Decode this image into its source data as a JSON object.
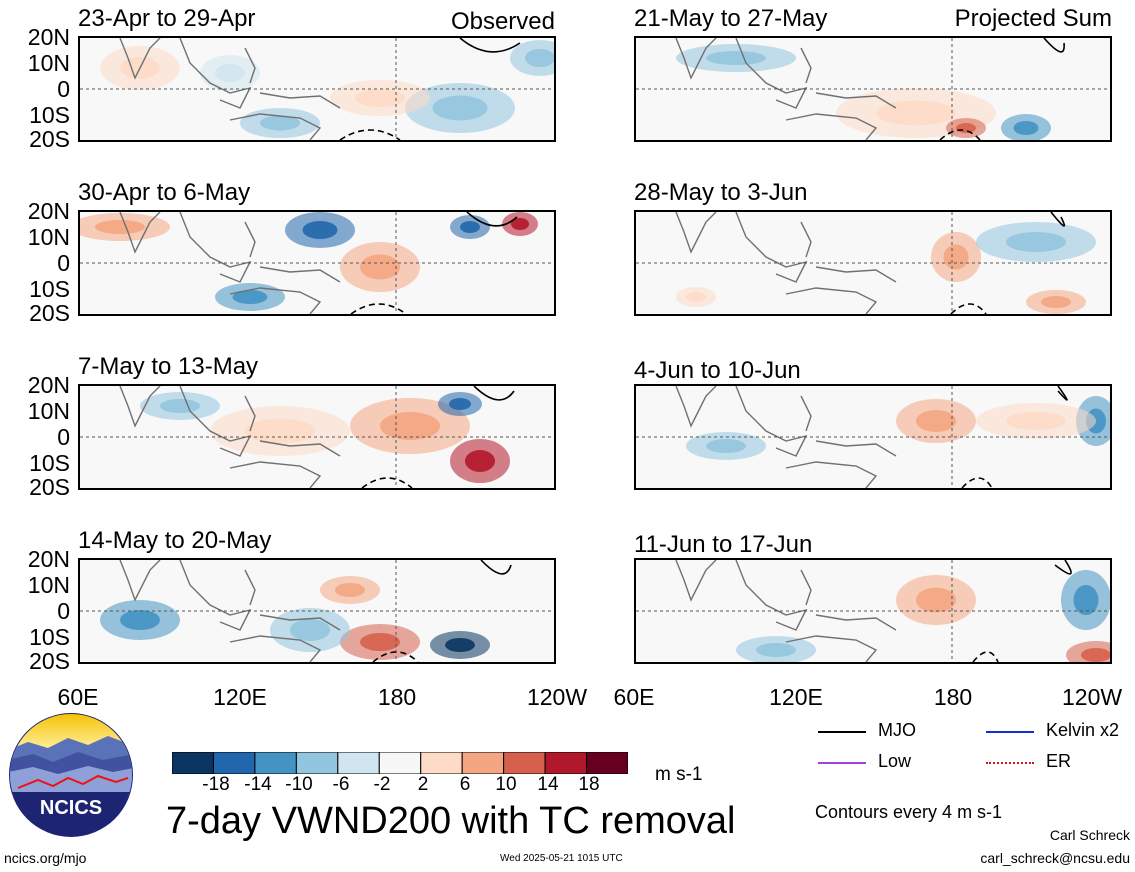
{
  "colors": {
    "colorbar": [
      "#0a3560",
      "#2166ac",
      "#4393c3",
      "#92c5de",
      "#d1e5f0",
      "#f7f7f7",
      "#fddbc7",
      "#f4a582",
      "#d6604d",
      "#b2182b",
      "#67001f"
    ],
    "mjo": "#000000",
    "kelvin": "#1030d0",
    "low": "#a040e0",
    "er": "#d01818",
    "coast": "#707070"
  },
  "labels": {
    "observed": "Observed",
    "projected": "Projected Sum",
    "lats": [
      "20N",
      "10N",
      "0",
      "10S",
      "20S"
    ],
    "lons": [
      "60E",
      "120E",
      "180",
      "120W"
    ]
  },
  "panels_left": [
    {
      "title": "23-Apr to 29-Apr"
    },
    {
      "title": "30-Apr to 6-May"
    },
    {
      "title": "7-May to 13-May"
    },
    {
      "title": "14-May to 20-May"
    }
  ],
  "panels_right": [
    {
      "title": "21-May to 27-May"
    },
    {
      "title": "28-May to 3-Jun"
    },
    {
      "title": "4-Jun to 10-Jun"
    },
    {
      "title": "11-Jun to 17-Jun"
    }
  ],
  "colorbar": {
    "ticks": [
      "-18",
      "-14",
      "-10",
      "-6",
      "-2",
      "2",
      "6",
      "10",
      "14",
      "18"
    ],
    "units": "m s-1"
  },
  "legend": {
    "mjo": "MJO",
    "kelvin": "Kelvin x2",
    "low": "Low",
    "er": "ER",
    "contours": "Contours every 4 m s-1"
  },
  "footer": {
    "title": "7-day VWND200 with TC removal",
    "logo_text": "NCICS",
    "url": "ncics.org/mjo",
    "timestamp": "Wed 2025-05-21 1015 UTC",
    "author": "Carl Schreck",
    "email": "carl_schreck@ncsu.edu"
  }
}
